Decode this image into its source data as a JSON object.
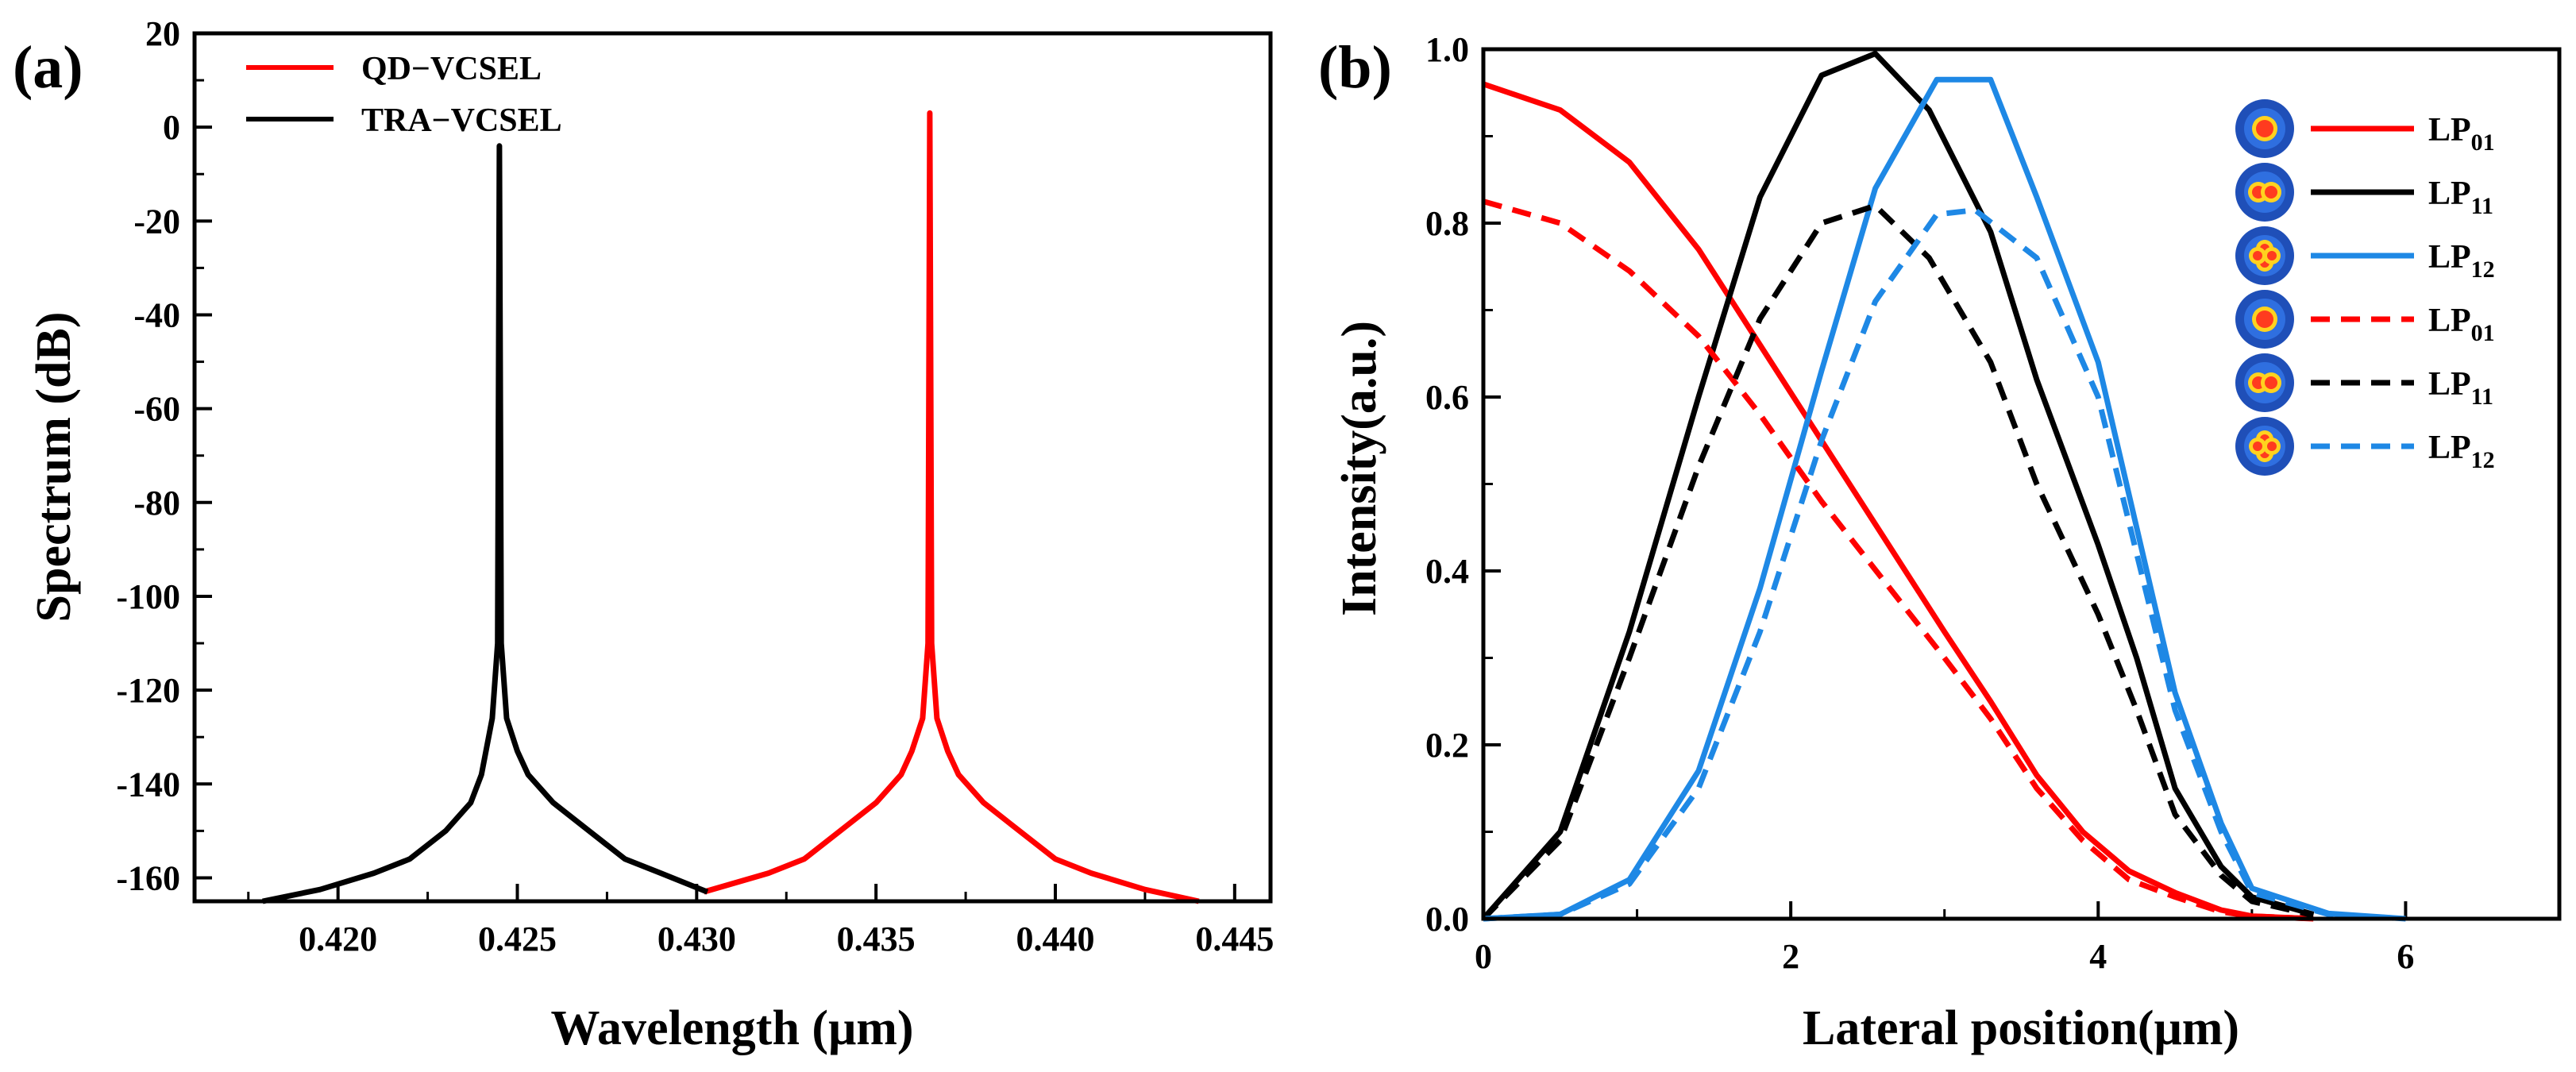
{
  "chart_data": [
    {
      "panel_label": "(a)",
      "type": "line",
      "xlabel": "Wavelength (μm)",
      "ylabel": "Spectrum (dB)",
      "xlim": [
        0.416,
        0.446
      ],
      "ylim": [
        -165,
        20
      ],
      "xticks": [
        "0.420",
        "0.425",
        "0.430",
        "0.435",
        "0.440",
        "0.445"
      ],
      "yticks": [
        "20",
        "0",
        "-20",
        "-40",
        "-60",
        "-80",
        "-100",
        "-120",
        "-140",
        "-160"
      ],
      "legend_position": "top-left",
      "series": [
        {
          "name": "QD−VCSEL",
          "color": "#ff0000",
          "points": [
            [
              0.4302,
              -163
            ],
            [
              0.432,
              -159
            ],
            [
              0.433,
              -156
            ],
            [
              0.434,
              -150
            ],
            [
              0.435,
              -144
            ],
            [
              0.4357,
              -138
            ],
            [
              0.436,
              -133
            ],
            [
              0.4363,
              -126
            ],
            [
              0.43645,
              -110
            ],
            [
              0.4365,
              3
            ],
            [
              0.43655,
              -110
            ],
            [
              0.4367,
              -126
            ],
            [
              0.437,
              -133
            ],
            [
              0.4373,
              -138
            ],
            [
              0.438,
              -144
            ],
            [
              0.439,
              -150
            ],
            [
              0.44,
              -156
            ],
            [
              0.441,
              -159
            ],
            [
              0.4425,
              -162.5
            ],
            [
              0.444,
              -165
            ]
          ]
        },
        {
          "name": "TRA−VCSEL",
          "color": "#000000",
          "points": [
            [
              0.4179,
              -165
            ],
            [
              0.4195,
              -162.5
            ],
            [
              0.421,
              -159
            ],
            [
              0.422,
              -156
            ],
            [
              0.423,
              -150
            ],
            [
              0.4237,
              -144
            ],
            [
              0.424,
              -138
            ],
            [
              0.4243,
              -126
            ],
            [
              0.42445,
              -110
            ],
            [
              0.4245,
              -4
            ],
            [
              0.42455,
              -110
            ],
            [
              0.4247,
              -126
            ],
            [
              0.425,
              -133
            ],
            [
              0.4253,
              -138
            ],
            [
              0.426,
              -144
            ],
            [
              0.427,
              -150
            ],
            [
              0.428,
              -156
            ],
            [
              0.429,
              -159
            ],
            [
              0.4303,
              -163
            ]
          ]
        }
      ]
    },
    {
      "panel_label": "(b)",
      "type": "line",
      "xlabel": "Lateral position(μm)",
      "ylabel": "Intensity(a.u.)",
      "xlim": [
        0,
        7
      ],
      "ylim": [
        0,
        1.0
      ],
      "xticks": [
        "0",
        "2",
        "4",
        "6"
      ],
      "yticks": [
        "0.0",
        "0.2",
        "0.4",
        "0.6",
        "0.8",
        "1.0"
      ],
      "legend_position": "top-right",
      "series": [
        {
          "name": "LP",
          "subscript": "01",
          "color": "#ff0000",
          "dash": "solid",
          "mode_icon": "center-spot-icon",
          "points": [
            [
              0,
              0.96
            ],
            [
              0.5,
              0.93
            ],
            [
              0.95,
              0.87
            ],
            [
              1.4,
              0.77
            ],
            [
              1.8,
              0.66
            ],
            [
              2.2,
              0.55
            ],
            [
              2.6,
              0.44
            ],
            [
              3.0,
              0.33
            ],
            [
              3.3,
              0.25
            ],
            [
              3.6,
              0.165
            ],
            [
              3.9,
              0.1
            ],
            [
              4.2,
              0.055
            ],
            [
              4.5,
              0.03
            ],
            [
              4.8,
              0.01
            ],
            [
              5.0,
              0.003
            ],
            [
              5.4,
              0.0
            ]
          ]
        },
        {
          "name": "LP",
          "subscript": "11",
          "color": "#000000",
          "dash": "solid",
          "mode_icon": "two-lobe-icon",
          "points": [
            [
              0,
              0.0
            ],
            [
              0.5,
              0.1
            ],
            [
              0.95,
              0.33
            ],
            [
              1.4,
              0.6
            ],
            [
              1.8,
              0.83
            ],
            [
              2.2,
              0.97
            ],
            [
              2.55,
              0.995
            ],
            [
              2.9,
              0.93
            ],
            [
              3.3,
              0.79
            ],
            [
              3.6,
              0.62
            ],
            [
              4.0,
              0.43
            ],
            [
              4.25,
              0.3
            ],
            [
              4.5,
              0.15
            ],
            [
              4.8,
              0.06
            ],
            [
              5.0,
              0.025
            ],
            [
              5.4,
              0.005
            ]
          ]
        },
        {
          "name": "LP",
          "subscript": "12",
          "color": "#1e88e5",
          "dash": "solid",
          "mode_icon": "four-lobe-icon",
          "points": [
            [
              0,
              0.0
            ],
            [
              0.5,
              0.005
            ],
            [
              0.95,
              0.045
            ],
            [
              1.4,
              0.17
            ],
            [
              1.8,
              0.38
            ],
            [
              2.2,
              0.63
            ],
            [
              2.55,
              0.84
            ],
            [
              2.95,
              0.965
            ],
            [
              3.3,
              0.965
            ],
            [
              3.6,
              0.83
            ],
            [
              4.0,
              0.64
            ],
            [
              4.25,
              0.45
            ],
            [
              4.5,
              0.26
            ],
            [
              4.8,
              0.11
            ],
            [
              5.0,
              0.035
            ],
            [
              5.5,
              0.006
            ],
            [
              6.0,
              0.0
            ]
          ]
        },
        {
          "name": "LP",
          "subscript": "01",
          "color": "#ff0000",
          "dash": "dashed",
          "mode_icon": "center-spot-icon",
          "points": [
            [
              0,
              0.825
            ],
            [
              0.5,
              0.8
            ],
            [
              0.95,
              0.745
            ],
            [
              1.4,
              0.67
            ],
            [
              1.8,
              0.58
            ],
            [
              2.2,
              0.48
            ],
            [
              2.6,
              0.39
            ],
            [
              3.0,
              0.3
            ],
            [
              3.3,
              0.23
            ],
            [
              3.6,
              0.15
            ],
            [
              3.9,
              0.09
            ],
            [
              4.2,
              0.045
            ],
            [
              4.5,
              0.025
            ],
            [
              4.8,
              0.008
            ],
            [
              5.0,
              0.003
            ],
            [
              5.4,
              0.0
            ]
          ]
        },
        {
          "name": "LP",
          "subscript": "11",
          "color": "#000000",
          "dash": "dashed",
          "mode_icon": "two-lobe-icon",
          "points": [
            [
              0,
              0.0
            ],
            [
              0.5,
              0.09
            ],
            [
              0.95,
              0.3
            ],
            [
              1.4,
              0.52
            ],
            [
              1.8,
              0.69
            ],
            [
              2.2,
              0.8
            ],
            [
              2.55,
              0.82
            ],
            [
              2.9,
              0.76
            ],
            [
              3.3,
              0.64
            ],
            [
              3.6,
              0.5
            ],
            [
              4.0,
              0.35
            ],
            [
              4.25,
              0.24
            ],
            [
              4.5,
              0.12
            ],
            [
              4.8,
              0.05
            ],
            [
              5.0,
              0.02
            ],
            [
              5.4,
              0.004
            ]
          ]
        },
        {
          "name": "LP",
          "subscript": "12",
          "color": "#1e88e5",
          "dash": "dashed",
          "mode_icon": "four-lobe-icon",
          "points": [
            [
              0,
              0.0
            ],
            [
              0.5,
              0.005
            ],
            [
              0.95,
              0.04
            ],
            [
              1.4,
              0.15
            ],
            [
              1.8,
              0.33
            ],
            [
              2.2,
              0.55
            ],
            [
              2.55,
              0.71
            ],
            [
              2.95,
              0.81
            ],
            [
              3.2,
              0.815
            ],
            [
              3.6,
              0.76
            ],
            [
              4.0,
              0.6
            ],
            [
              4.25,
              0.42
            ],
            [
              4.5,
              0.24
            ],
            [
              4.8,
              0.1
            ],
            [
              5.0,
              0.03
            ],
            [
              5.5,
              0.005
            ],
            [
              6.0,
              0.0
            ]
          ]
        }
      ]
    }
  ]
}
